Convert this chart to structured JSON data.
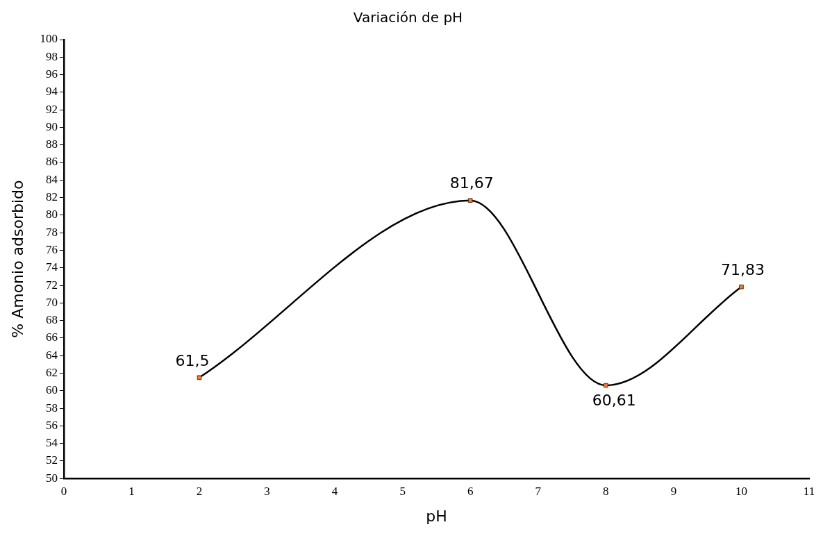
{
  "chart_data": {
    "type": "line",
    "title": "Variación de pH",
    "xlabel": "pH",
    "ylabel": "% Amonio adsorbido",
    "x": [
      2,
      6,
      8,
      10
    ],
    "series": [
      {
        "color": "#000000",
        "values": [
          61.5,
          81.67,
          60.61,
          71.83
        ],
        "value_labels": [
          "61,5",
          "81,67",
          "60,61",
          "71,83"
        ]
      }
    ],
    "xlim": [
      0,
      11
    ],
    "xticks": [
      0,
      1,
      2,
      3,
      4,
      5,
      6,
      7,
      8,
      9,
      10,
      11
    ],
    "ylim": [
      50,
      100
    ],
    "yticks": [
      50,
      52,
      54,
      56,
      58,
      60,
      62,
      64,
      66,
      68,
      70,
      72,
      74,
      76,
      78,
      80,
      82,
      84,
      86,
      88,
      90,
      92,
      94,
      96,
      98,
      100
    ],
    "grid": false,
    "marker": "square",
    "line_style": "solid"
  }
}
